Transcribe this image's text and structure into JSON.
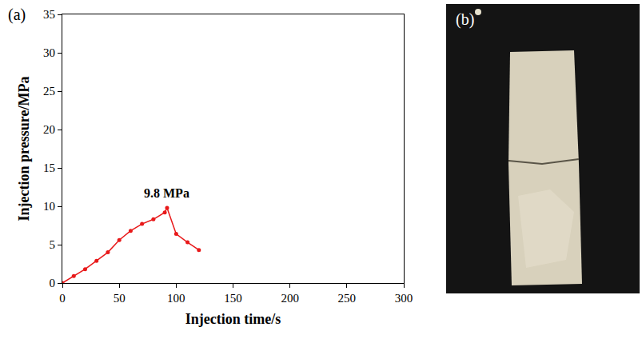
{
  "chart_data": {
    "type": "line",
    "panel_label": "(a)",
    "xlabel": "Injection time/s",
    "ylabel": "Injection pressure/MPa",
    "x": [
      0,
      10,
      20,
      30,
      40,
      50,
      60,
      70,
      80,
      90,
      92,
      100,
      110,
      120
    ],
    "values": [
      0,
      0.9,
      1.8,
      2.9,
      4.0,
      5.6,
      6.8,
      7.7,
      8.3,
      9.2,
      9.8,
      6.4,
      5.3,
      4.3
    ],
    "color": "#e8191a",
    "marker": "circle",
    "line_style": "solid",
    "xlim": [
      0,
      300
    ],
    "xticks": [
      0,
      50,
      100,
      150,
      200,
      250,
      300
    ],
    "ylim": [
      0,
      35
    ],
    "yticks": [
      0,
      5,
      10,
      15,
      20,
      25,
      30,
      35
    ],
    "grid": false,
    "annotations": [
      {
        "text": "9.8 MPa",
        "x": 92,
        "y": 9.8
      }
    ]
  },
  "photo": {
    "label": "(b)"
  }
}
